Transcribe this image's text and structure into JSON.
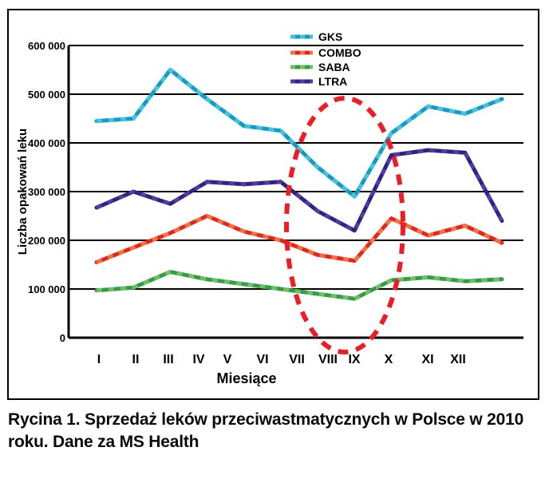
{
  "figure": {
    "caption": "Rycina 1. Sprzedaż leków przeciwastmatycznych w Polsce w 2010 roku. Dane za MS Health"
  },
  "chart_data": {
    "type": "line",
    "title": "",
    "xlabel": "Miesiące",
    "ylabel": "Liczba opakowań leku",
    "categories": [
      "I",
      "II",
      "III",
      "IV",
      "V",
      "VI",
      "VII",
      "VIII",
      "IX",
      "X",
      "XI",
      "XII"
    ],
    "ylim": [
      0,
      600000
    ],
    "ytick_step": 100000,
    "ytick_labels": [
      "0",
      "100 000",
      "200 000",
      "300 000",
      "400 000",
      "500 000",
      "600 000"
    ],
    "grid": "horizontal-black",
    "legend_position": "top-center",
    "series": [
      {
        "name": "GKS",
        "color": "#1599C6",
        "dash_color": "#3FC6DC",
        "values": [
          445000,
          450000,
          550000,
          490000,
          435000,
          425000,
          350000,
          290000,
          420000,
          475000,
          460000,
          490000
        ]
      },
      {
        "name": "COMBO",
        "color": "#E8251D",
        "dash_color": "#F47240",
        "values": [
          155000,
          185000,
          215000,
          250000,
          218000,
          200000,
          170000,
          158000,
          245000,
          210000,
          230000,
          195000
        ]
      },
      {
        "name": "SABA",
        "color": "#2F9E4B",
        "dash_color": "#71C05B",
        "values": [
          97000,
          103000,
          135000,
          120000,
          110000,
          100000,
          90000,
          80000,
          118000,
          124000,
          116000,
          120000
        ]
      },
      {
        "name": "LTRA",
        "color": "#2B2581",
        "dash_color": "#5A36A6",
        "values": [
          267000,
          300000,
          275000,
          320000,
          315000,
          320000,
          260000,
          220000,
          375000,
          385000,
          380000,
          240000
        ]
      }
    ],
    "annotation": {
      "type": "dashed-ellipse",
      "color": "#EE1C25",
      "highlighted_months": [
        "VII",
        "VIII"
      ]
    }
  }
}
